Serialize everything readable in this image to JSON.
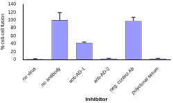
{
  "chart_data": {
    "type": "bar",
    "x_label": "Inhibitor",
    "y_label": "% cell-cell fusion",
    "categories": [
      "no virus",
      "no antibody",
      "anti-AD-1",
      "anti-AD-2",
      "neg. control Ab",
      "polyclonal serum"
    ],
    "values": [
      2,
      100,
      43,
      3,
      98,
      3
    ],
    "errors": [
      0.5,
      19,
      1.5,
      0.5,
      9,
      0.5
    ],
    "color": "#9999ff",
    "ylim": [
      0,
      140
    ],
    "yticks": [
      0,
      20,
      40,
      60,
      80,
      100,
      120,
      140
    ],
    "grid": false
  }
}
